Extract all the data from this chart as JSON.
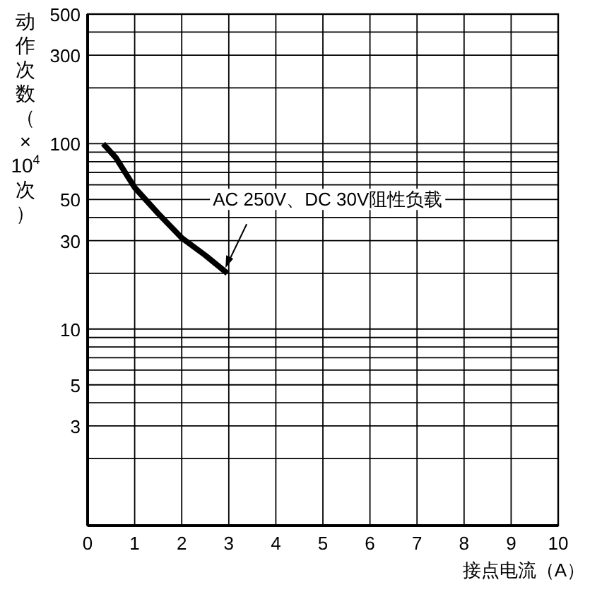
{
  "chart_data": {
    "type": "line",
    "xlabel": "接点电流（A）",
    "ylabel": "动作次数（×10$^{4}$次）",
    "log": "y",
    "grid": true,
    "line_style": "solid",
    "xlim": [
      0,
      10
    ],
    "ylim": [
      0.87,
      500
    ],
    "xticks": [
      0,
      1,
      2,
      3,
      4,
      5,
      6,
      7,
      8,
      9,
      10
    ],
    "yticks": [
      {
        "value": 2,
        "label": null
      },
      3,
      {
        "value": 4,
        "label": null
      },
      5,
      {
        "value": 6,
        "label": null
      },
      {
        "value": 7,
        "label": null
      },
      {
        "value": 8,
        "label": null
      },
      {
        "value": 9,
        "label": null
      },
      10,
      {
        "value": 20,
        "label": null
      },
      30,
      {
        "value": 40,
        "label": null
      },
      50,
      {
        "value": 60,
        "label": null
      },
      {
        "value": 70,
        "label": null
      },
      {
        "value": 80,
        "label": null
      },
      {
        "value": 90,
        "label": null
      },
      100,
      {
        "value": 200,
        "label": null
      },
      300,
      {
        "value": 400,
        "label": null
      },
      500
    ],
    "series": [
      {
        "color": "#000000",
        "x": [
          0.33,
          0.6,
          1,
          1.5,
          2,
          2.5,
          2.97
        ],
        "values": [
          100,
          84,
          58,
          42,
          31,
          25,
          20
        ]
      }
    ],
    "annotations": [
      {
        "text": "AC 250V、DC 30V阻性负载",
        "x": 2.9,
        "y": 21
      }
    ]
  }
}
